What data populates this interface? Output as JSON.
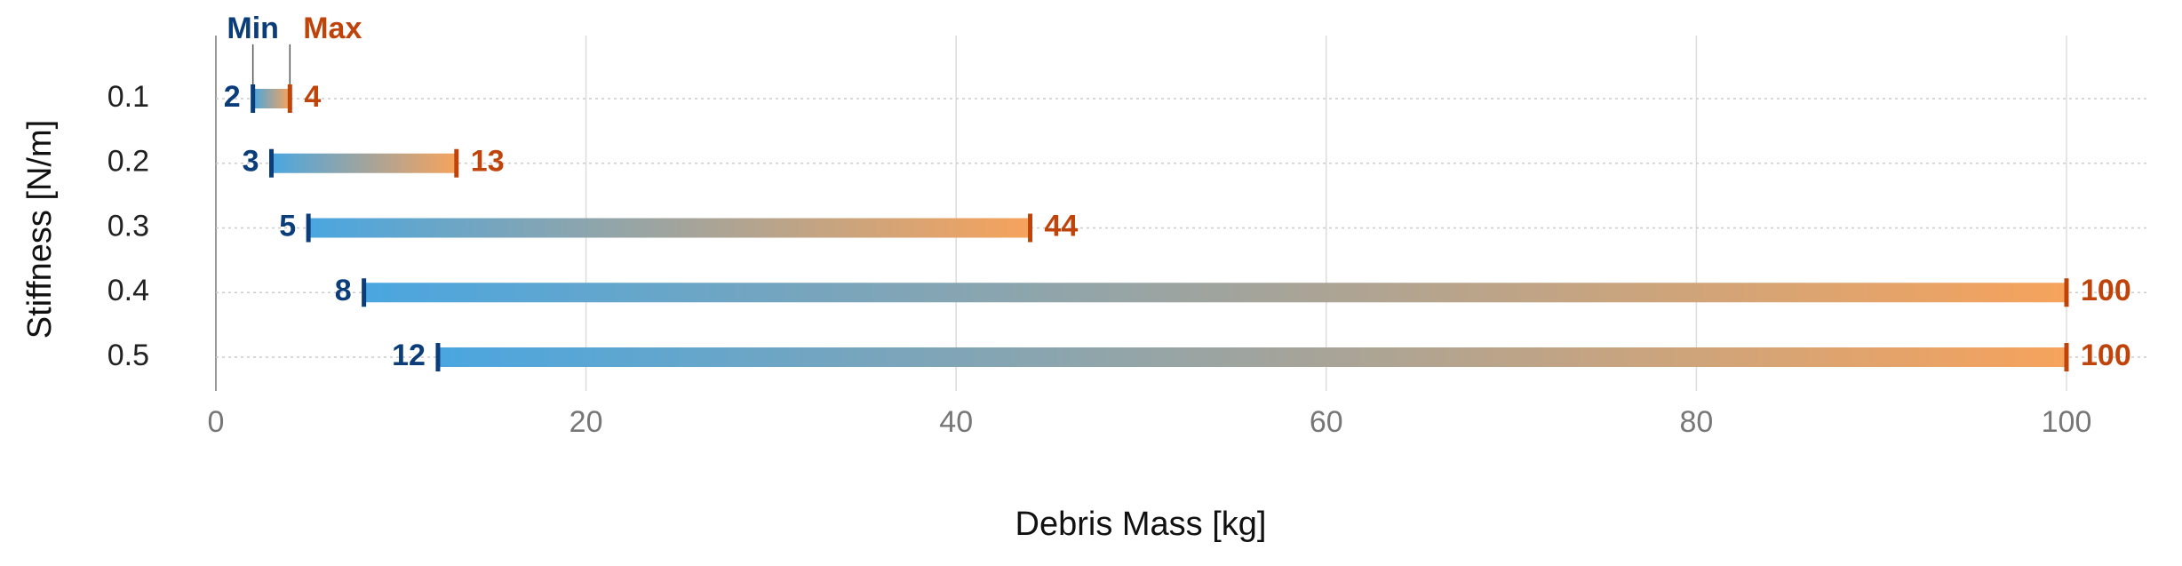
{
  "chart_data": {
    "type": "range",
    "x_label": "Debris Mass [kg]",
    "y_label": "Stiffness [N/m]",
    "categories": [
      "0.1",
      "0.2",
      "0.3",
      "0.4",
      "0.5"
    ],
    "series": [
      {
        "name": "Min",
        "color": "#0b3d7a",
        "values": [
          2,
          3,
          5,
          8,
          12
        ]
      },
      {
        "name": "Max",
        "color": "#c0440a",
        "values": [
          4,
          13,
          44,
          100,
          100
        ]
      }
    ],
    "bar_gradient": [
      "#4aa6e0",
      "#f6a35c"
    ],
    "xlim": [
      0,
      100
    ],
    "xticks": [
      0,
      20,
      40,
      60,
      80,
      100
    ],
    "grid": true
  }
}
